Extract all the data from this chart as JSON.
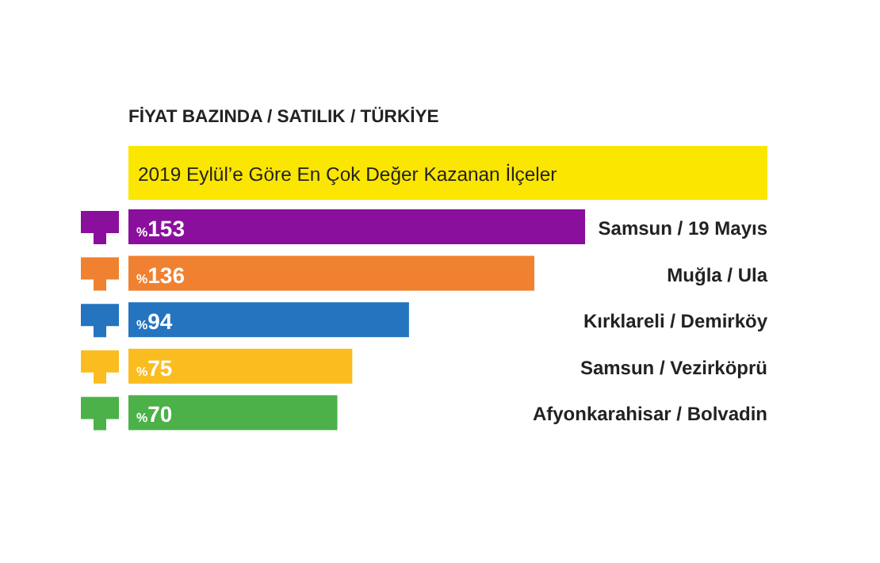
{
  "chart_data": {
    "type": "bar",
    "orientation": "horizontal",
    "title": "FİYAT BAZINDA / SATILIK / TÜRKİYE",
    "subtitle": "2019 Eylül’e Göre En Çok Değer Kazanan İlçeler",
    "categories": [
      "Samsun / 19 Mayıs",
      "Muğla / Ula",
      "Kırklareli / Demirköy",
      "Samsun / Vezirköprü",
      "Afyonkarahisar / Bolvadin"
    ],
    "values": [
      153,
      136,
      94,
      75,
      70
    ],
    "value_labels": [
      "%153",
      "%136",
      "%94",
      "%75",
      "%70"
    ],
    "colors": [
      "#8a0f9c",
      "#f08130",
      "#2474bf",
      "#fbbc1f",
      "#4bb148"
    ]
  }
}
